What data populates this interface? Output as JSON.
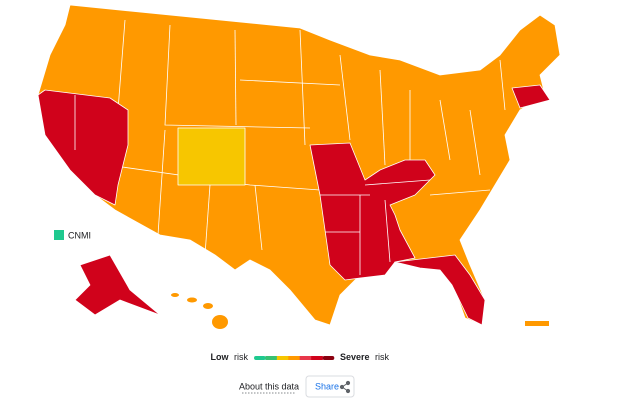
{
  "map": {
    "inset_label": "CNMI"
  },
  "legend": {
    "low_word": "Low",
    "low_suffix": "risk",
    "high_word": "Severe",
    "high_suffix": "risk",
    "colors": [
      "#1fc98f",
      "#38c172",
      "#f7c600",
      "#ff9900",
      "#e8374a",
      "#d0021b",
      "#8b0010"
    ]
  },
  "footer": {
    "about": "About this data",
    "share": "Share"
  }
}
